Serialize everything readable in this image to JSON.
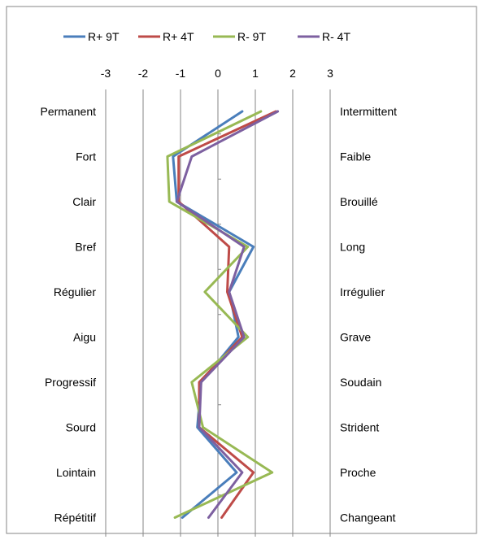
{
  "chart_data": {
    "type": "line",
    "orientation": "vertical-profile",
    "x_axis": {
      "position": "top",
      "ticks": [
        "-3",
        "-2",
        "-1",
        "0",
        "1",
        "2",
        "3"
      ],
      "range": [
        -3,
        3
      ]
    },
    "grid": "vertical",
    "legend": {
      "placement": "top"
    },
    "left_labels": [
      "Permanent",
      "Fort",
      "Clair",
      "Bref",
      "Régulier",
      "Aigu",
      "Progressif",
      "Sourd",
      "Lointain",
      "Répétitif"
    ],
    "right_labels": [
      "Intermittent",
      "Faible",
      "Brouillé",
      "Long",
      "Irrégulier",
      "Grave",
      "Soudain",
      "Strident",
      "Proche",
      "Changeant"
    ],
    "series": [
      {
        "name": "R+ 9T",
        "color": "#4a7ebb",
        "values": [
          0.65,
          -1.2,
          -1.1,
          0.95,
          0.3,
          0.55,
          -0.45,
          -0.55,
          0.5,
          -0.95
        ]
      },
      {
        "name": "R+ 4T",
        "color": "#be4b48",
        "values": [
          1.55,
          -1.05,
          -1.05,
          0.3,
          0.25,
          0.65,
          -0.5,
          -0.5,
          0.95,
          0.1
        ]
      },
      {
        "name": "R- 9T",
        "color": "#98b954",
        "values": [
          1.15,
          -1.35,
          -1.3,
          0.8,
          -0.35,
          0.8,
          -0.7,
          -0.4,
          1.45,
          -1.15
        ]
      },
      {
        "name": "R- 4T",
        "color": "#7d60a0",
        "values": [
          1.6,
          -0.7,
          -1.1,
          0.7,
          0.3,
          0.7,
          -0.45,
          -0.5,
          0.65,
          -0.25
        ]
      }
    ]
  }
}
